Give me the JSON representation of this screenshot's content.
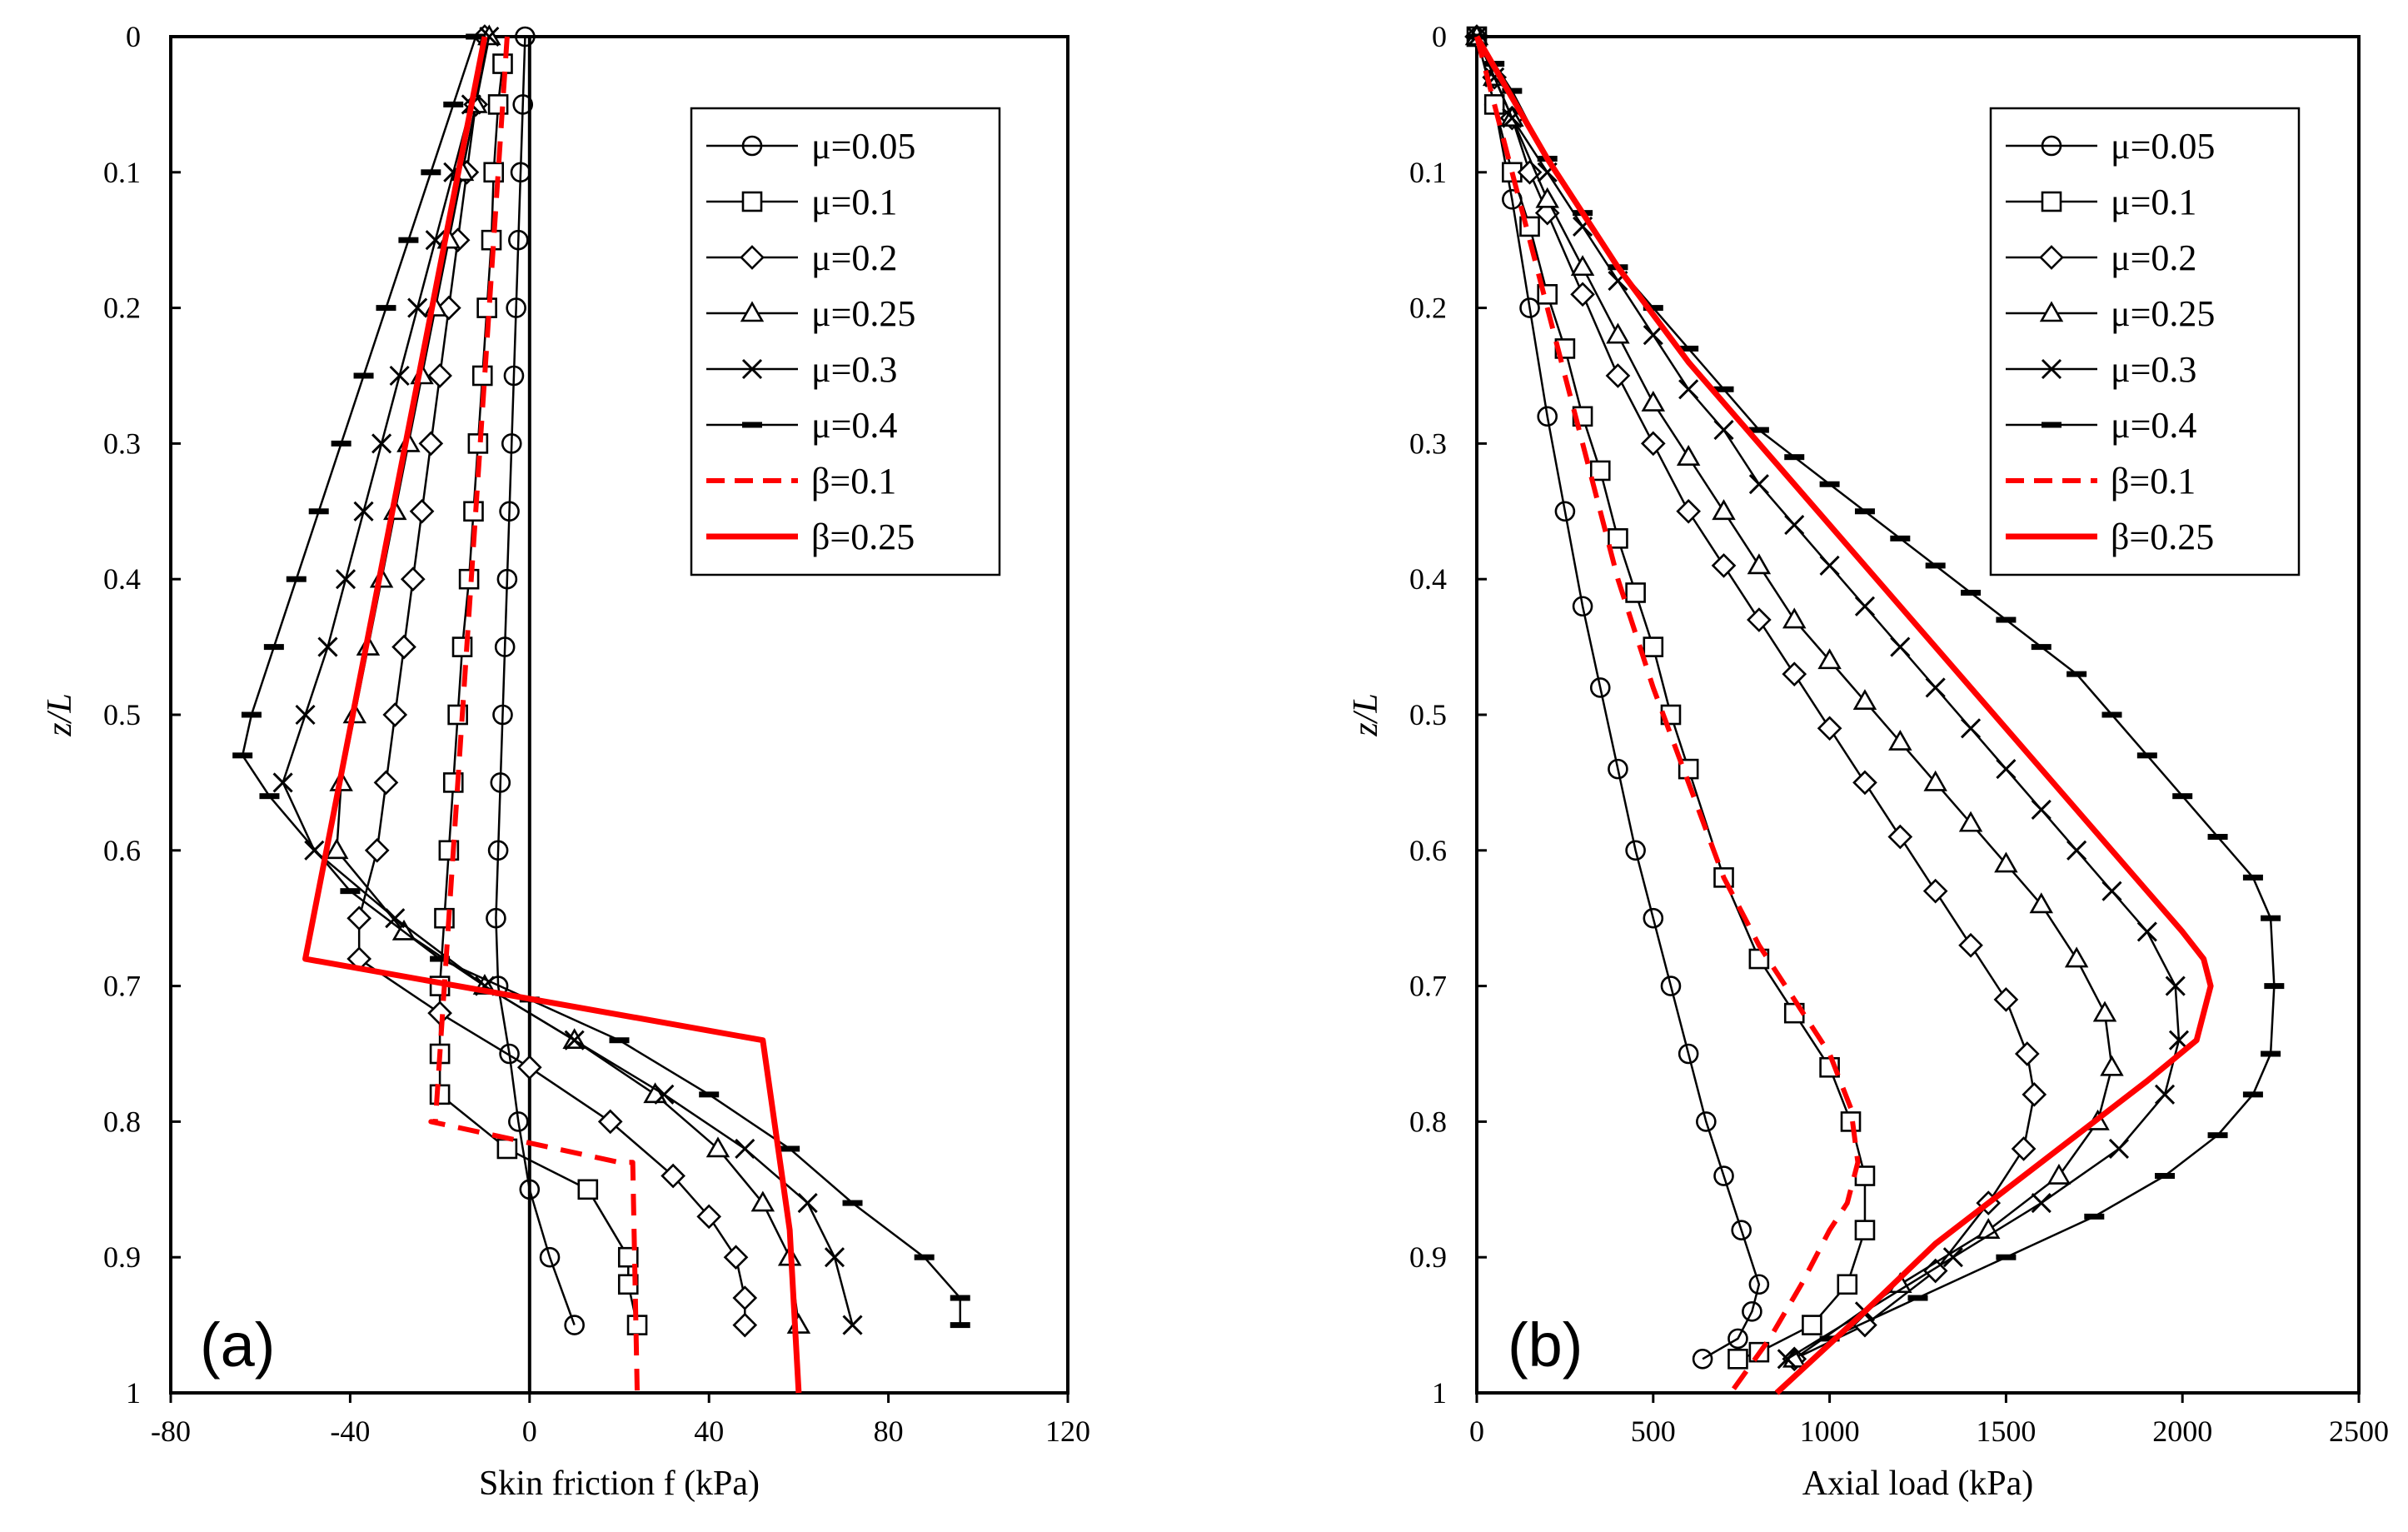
{
  "colors": {
    "black": "#000000",
    "red": "#ff0000",
    "background": "#ffffff"
  },
  "chart_data": [
    {
      "type": "line",
      "panel_label": "(a)",
      "xlabel": "Skin friction f (kPa)",
      "ylabel": "z/L",
      "xlim": [
        -80,
        120
      ],
      "ylim": [
        0,
        1
      ],
      "y_inverted": true,
      "xticks": [
        "-80",
        "-40",
        "0",
        "40",
        "80",
        "120"
      ],
      "yticks": [
        "0",
        "0.1",
        "0.2",
        "0.3",
        "0.4",
        "0.5",
        "0.6",
        "0.7",
        "0.8",
        "0.9",
        "1"
      ],
      "legend_position": "top-right",
      "vertical_zero_line": true,
      "series": [
        {
          "name": "μ=0.05",
          "style": "black",
          "marker": "circle",
          "x": [
            -1,
            -1.5,
            -2,
            -2.5,
            -3,
            -3.5,
            -4,
            -4.5,
            -5,
            -5.5,
            -6,
            -6.5,
            -7,
            -7.5,
            -7,
            -4.5,
            -2.5,
            0,
            4.5,
            10
          ],
          "y": [
            0,
            0.05,
            0.1,
            0.15,
            0.2,
            0.25,
            0.3,
            0.35,
            0.4,
            0.45,
            0.5,
            0.55,
            0.6,
            0.65,
            0.7,
            0.75,
            0.8,
            0.85,
            0.9,
            0.95
          ]
        },
        {
          "name": "μ=0.1",
          "style": "black",
          "marker": "square",
          "x": [
            -6,
            -7,
            -8,
            -8.5,
            -9.5,
            -10.5,
            -11.5,
            -12.5,
            -13.5,
            -15,
            -16,
            -17,
            -18,
            -19,
            -20,
            -20,
            -20,
            -5,
            13,
            22,
            22,
            24
          ],
          "y": [
            0.02,
            0.05,
            0.1,
            0.15,
            0.2,
            0.25,
            0.3,
            0.35,
            0.4,
            0.45,
            0.5,
            0.55,
            0.6,
            0.65,
            0.7,
            0.75,
            0.78,
            0.82,
            0.85,
            0.9,
            0.92,
            0.95
          ]
        },
        {
          "name": "μ=0.2",
          "style": "black",
          "marker": "diamond",
          "x": [
            -10,
            -12,
            -14,
            -16,
            -18,
            -20,
            -22,
            -24,
            -26,
            -28,
            -30,
            -32,
            -34,
            -38,
            -38,
            -20,
            0,
            18,
            32,
            40,
            46,
            48,
            48
          ],
          "y": [
            0.0,
            0.05,
            0.1,
            0.15,
            0.2,
            0.25,
            0.3,
            0.35,
            0.4,
            0.45,
            0.5,
            0.55,
            0.6,
            0.65,
            0.68,
            0.72,
            0.76,
            0.8,
            0.84,
            0.87,
            0.9,
            0.93,
            0.95
          ]
        },
        {
          "name": "μ=0.25",
          "style": "black",
          "marker": "triangle",
          "x": [
            -9,
            -12,
            -15,
            -18,
            -21,
            -24,
            -27,
            -30,
            -33,
            -36,
            -39,
            -42,
            -43,
            -28,
            -10,
            10,
            28,
            42,
            52,
            58,
            60
          ],
          "y": [
            0.0,
            0.05,
            0.1,
            0.15,
            0.2,
            0.25,
            0.3,
            0.35,
            0.4,
            0.45,
            0.5,
            0.55,
            0.6,
            0.66,
            0.7,
            0.74,
            0.78,
            0.82,
            0.86,
            0.9,
            0.95
          ]
        },
        {
          "name": "μ=0.3",
          "style": "black",
          "marker": "x",
          "x": [
            -9,
            -13,
            -17,
            -21,
            -25,
            -29,
            -33,
            -37,
            -41,
            -45,
            -50,
            -55,
            -48,
            -30,
            -10,
            10,
            30,
            48,
            62,
            68,
            72
          ],
          "y": [
            0.0,
            0.05,
            0.1,
            0.15,
            0.2,
            0.25,
            0.3,
            0.35,
            0.4,
            0.45,
            0.5,
            0.55,
            0.6,
            0.65,
            0.7,
            0.74,
            0.78,
            0.82,
            0.86,
            0.9,
            0.95
          ]
        },
        {
          "name": "μ=0.4",
          "style": "black",
          "marker": "dash",
          "x": [
            -12,
            -17,
            -22,
            -27,
            -32,
            -37,
            -42,
            -47,
            -52,
            -57,
            -62,
            -64,
            -58,
            -40,
            -20,
            0,
            20,
            40,
            58,
            72,
            88,
            96,
            96
          ],
          "y": [
            0.0,
            0.05,
            0.1,
            0.15,
            0.2,
            0.25,
            0.3,
            0.35,
            0.4,
            0.45,
            0.5,
            0.53,
            0.56,
            0.63,
            0.68,
            0.71,
            0.74,
            0.78,
            0.82,
            0.86,
            0.9,
            0.93,
            0.95
          ]
        },
        {
          "name": "β=0.1",
          "style": "red-dashed",
          "marker": "none",
          "x": [
            -5,
            -21,
            -22,
            20,
            23,
            24
          ],
          "y": [
            0,
            0.8,
            0.8,
            0.83,
            0.83,
            1.0
          ]
        },
        {
          "name": "β=0.25",
          "style": "red-solid",
          "marker": "none",
          "x": [
            -10,
            -50,
            52,
            58,
            60
          ],
          "y": [
            0,
            0.68,
            0.74,
            0.88,
            1.0
          ]
        }
      ]
    },
    {
      "type": "line",
      "panel_label": "(b)",
      "xlabel": "Axial load (kPa)",
      "ylabel": "z/L",
      "xlim": [
        0,
        2500
      ],
      "ylim": [
        0,
        1
      ],
      "y_inverted": true,
      "xticks": [
        "0",
        "500",
        "1000",
        "1500",
        "2000",
        "2500"
      ],
      "yticks": [
        "0",
        "0.1",
        "0.2",
        "0.3",
        "0.4",
        "0.5",
        "0.6",
        "0.7",
        "0.8",
        "0.9",
        "1"
      ],
      "legend_position": "top-right",
      "series": [
        {
          "name": "μ=0.05",
          "style": "black",
          "marker": "circle",
          "x": [
            0,
            50,
            100,
            150,
            200,
            250,
            300,
            350,
            400,
            450,
            500,
            550,
            600,
            650,
            700,
            750,
            800,
            780,
            740,
            640
          ],
          "y": [
            0,
            0.05,
            0.12,
            0.2,
            0.28,
            0.35,
            0.42,
            0.48,
            0.54,
            0.6,
            0.65,
            0.7,
            0.75,
            0.8,
            0.84,
            0.88,
            0.92,
            0.94,
            0.96,
            0.975
          ]
        },
        {
          "name": "μ=0.1",
          "style": "black",
          "marker": "square",
          "x": [
            0,
            50,
            100,
            150,
            200,
            250,
            300,
            350,
            400,
            450,
            500,
            550,
            600,
            700,
            800,
            900,
            1000,
            1060,
            1100,
            1100,
            1050,
            950,
            800,
            740
          ],
          "y": [
            0,
            0.05,
            0.1,
            0.14,
            0.19,
            0.23,
            0.28,
            0.32,
            0.37,
            0.41,
            0.45,
            0.5,
            0.54,
            0.62,
            0.68,
            0.72,
            0.76,
            0.8,
            0.84,
            0.88,
            0.92,
            0.95,
            0.97,
            0.975
          ]
        },
        {
          "name": "μ=0.2",
          "style": "black",
          "marker": "diamond",
          "x": [
            0,
            50,
            100,
            150,
            200,
            300,
            400,
            500,
            600,
            700,
            800,
            900,
            1000,
            1100,
            1200,
            1300,
            1400,
            1500,
            1560,
            1580,
            1550,
            1450,
            1300,
            1100,
            900
          ],
          "y": [
            0,
            0.03,
            0.06,
            0.1,
            0.13,
            0.19,
            0.25,
            0.3,
            0.35,
            0.39,
            0.43,
            0.47,
            0.51,
            0.55,
            0.59,
            0.63,
            0.67,
            0.71,
            0.75,
            0.78,
            0.82,
            0.86,
            0.91,
            0.95,
            0.975
          ]
        },
        {
          "name": "μ=0.25",
          "style": "black",
          "marker": "triangle",
          "x": [
            0,
            50,
            100,
            200,
            300,
            400,
            500,
            600,
            700,
            800,
            900,
            1000,
            1100,
            1200,
            1300,
            1400,
            1500,
            1600,
            1700,
            1780,
            1800,
            1760,
            1650,
            1450,
            1200,
            900
          ],
          "y": [
            0,
            0.03,
            0.06,
            0.12,
            0.17,
            0.22,
            0.27,
            0.31,
            0.35,
            0.39,
            0.43,
            0.46,
            0.49,
            0.52,
            0.55,
            0.58,
            0.61,
            0.64,
            0.68,
            0.72,
            0.76,
            0.8,
            0.84,
            0.88,
            0.92,
            0.975
          ]
        },
        {
          "name": "μ=0.3",
          "style": "black",
          "marker": "x",
          "x": [
            0,
            50,
            100,
            200,
            300,
            400,
            500,
            600,
            700,
            800,
            900,
            1000,
            1100,
            1200,
            1300,
            1400,
            1500,
            1600,
            1700,
            1800,
            1900,
            1980,
            1990,
            1950,
            1820,
            1600,
            1350,
            1100,
            880
          ],
          "y": [
            0,
            0.03,
            0.06,
            0.1,
            0.14,
            0.18,
            0.22,
            0.26,
            0.29,
            0.33,
            0.36,
            0.39,
            0.42,
            0.45,
            0.48,
            0.51,
            0.54,
            0.57,
            0.6,
            0.63,
            0.66,
            0.7,
            0.74,
            0.78,
            0.82,
            0.86,
            0.9,
            0.94,
            0.975
          ]
        },
        {
          "name": "μ=0.4",
          "style": "black",
          "marker": "dash",
          "x": [
            0,
            50,
            100,
            200,
            300,
            400,
            500,
            600,
            700,
            800,
            900,
            1000,
            1100,
            1200,
            1300,
            1400,
            1500,
            1600,
            1700,
            1800,
            1900,
            2000,
            2100,
            2200,
            2250,
            2260,
            2250,
            2200,
            2100,
            1950,
            1750,
            1500,
            1250,
            1000
          ],
          "y": [
            0,
            0.02,
            0.04,
            0.09,
            0.13,
            0.17,
            0.2,
            0.23,
            0.26,
            0.29,
            0.31,
            0.33,
            0.35,
            0.37,
            0.39,
            0.41,
            0.43,
            0.45,
            0.47,
            0.5,
            0.53,
            0.56,
            0.59,
            0.62,
            0.65,
            0.7,
            0.75,
            0.78,
            0.81,
            0.84,
            0.87,
            0.9,
            0.93,
            0.96
          ]
        },
        {
          "name": "β=0.1",
          "style": "red-dashed",
          "marker": "none",
          "x": [
            0,
            100,
            200,
            300,
            400,
            500,
            600,
            700,
            800,
            900,
            1000,
            1060,
            1080,
            1050,
            1000,
            920,
            830,
            720
          ],
          "y": [
            0,
            0.1,
            0.2,
            0.3,
            0.4,
            0.48,
            0.55,
            0.62,
            0.67,
            0.71,
            0.75,
            0.79,
            0.83,
            0.86,
            0.88,
            0.92,
            0.96,
            1.0
          ]
        },
        {
          "name": "β=0.25",
          "style": "red-solid",
          "marker": "none",
          "x": [
            0,
            200,
            400,
            600,
            800,
            1000,
            1200,
            1400,
            1600,
            1800,
            1900,
            2000,
            2060,
            2080,
            2040,
            1900,
            1700,
            1500,
            1300,
            1100,
            850
          ],
          "y": [
            0,
            0.09,
            0.17,
            0.24,
            0.3,
            0.36,
            0.42,
            0.48,
            0.54,
            0.6,
            0.63,
            0.66,
            0.68,
            0.7,
            0.74,
            0.77,
            0.81,
            0.85,
            0.89,
            0.94,
            1.0
          ]
        }
      ]
    }
  ]
}
